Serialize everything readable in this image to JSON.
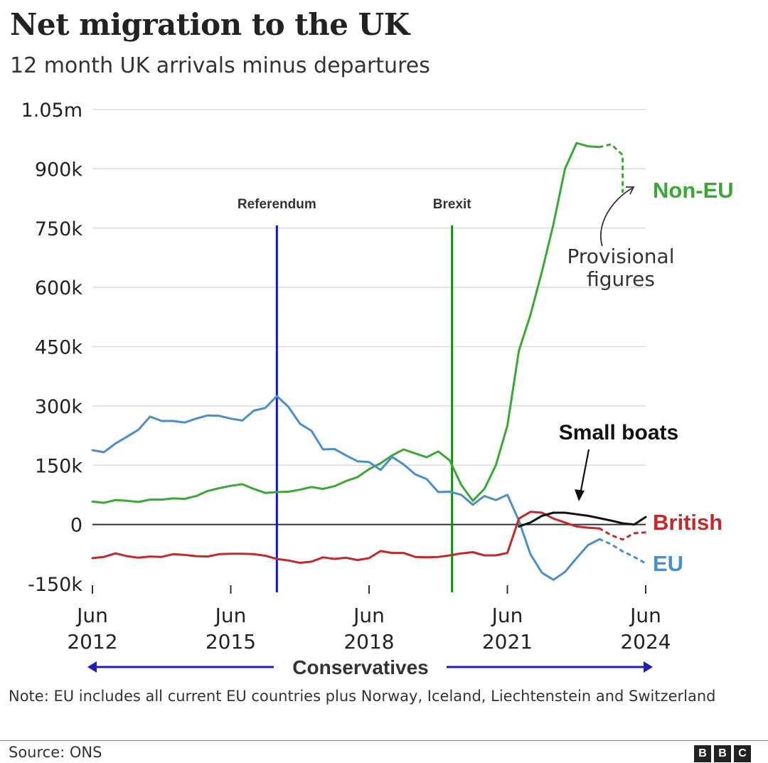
{
  "header": {
    "title": "Net migration to the UK",
    "subtitle": "12 month UK arrivals minus departures"
  },
  "chart_data": {
    "type": "line",
    "ylim": [
      -150000,
      1050000
    ],
    "y_ticks": [
      {
        "value": 1050000,
        "label": "1.05m"
      },
      {
        "value": 900000,
        "label": "900k"
      },
      {
        "value": 750000,
        "label": "750k"
      },
      {
        "value": 600000,
        "label": "600k"
      },
      {
        "value": 450000,
        "label": "450k"
      },
      {
        "value": 300000,
        "label": "300k"
      },
      {
        "value": 150000,
        "label": "150k"
      },
      {
        "value": 0,
        "label": "0"
      },
      {
        "value": -150000,
        "label": "-150k"
      }
    ],
    "x_ticks": [
      {
        "value": 2012.5,
        "line1": "Jun",
        "line2": "2012"
      },
      {
        "value": 2015.5,
        "line1": "Jun",
        "line2": "2015"
      },
      {
        "value": 2018.5,
        "line1": "Jun",
        "line2": "2018"
      },
      {
        "value": 2021.5,
        "line1": "Jun",
        "line2": "2021"
      },
      {
        "value": 2024.5,
        "line1": "Jun",
        "line2": "2024"
      }
    ],
    "xlim": [
      2012.5,
      2024.5
    ],
    "events": [
      {
        "label": "Referendum",
        "x": 2016.5,
        "color": "#1515c8"
      },
      {
        "label": "Brexit",
        "x": 2020.3,
        "color": "#138a13"
      }
    ],
    "series": [
      {
        "name": "Non-EU",
        "color": "#3aa835",
        "x": [
          2012.5,
          2012.75,
          2013,
          2013.25,
          2013.5,
          2013.75,
          2014,
          2014.25,
          2014.5,
          2014.75,
          2015,
          2015.25,
          2015.5,
          2015.75,
          2016,
          2016.25,
          2016.5,
          2016.75,
          2017,
          2017.25,
          2017.5,
          2017.75,
          2018,
          2018.25,
          2018.5,
          2018.75,
          2019,
          2019.25,
          2019.5,
          2019.75,
          2020,
          2020.25,
          2020.5,
          2020.75,
          2021,
          2021.25,
          2021.5,
          2021.75,
          2022,
          2022.25,
          2022.5,
          2022.75,
          2023,
          2023.25,
          2023.5
        ],
        "values": [
          58000,
          55000,
          62000,
          60000,
          57000,
          63000,
          63000,
          66000,
          65000,
          72000,
          85000,
          92000,
          98000,
          102000,
          90000,
          80000,
          82000,
          83000,
          88000,
          95000,
          90000,
          97000,
          110000,
          120000,
          140000,
          155000,
          175000,
          190000,
          180000,
          170000,
          185000,
          162000,
          100000,
          60000,
          90000,
          150000,
          250000,
          440000,
          530000,
          640000,
          760000,
          900000,
          965000,
          957000,
          955000
        ],
        "provisional_x": [
          2023.5,
          2023.75,
          2024,
          2024
        ],
        "provisional_values": [
          955000,
          962000,
          935000,
          842000
        ]
      },
      {
        "name": "EU",
        "color": "#4b8ec8",
        "x": [
          2012.5,
          2012.75,
          2013,
          2013.25,
          2013.5,
          2013.75,
          2014,
          2014.25,
          2014.5,
          2014.75,
          2015,
          2015.25,
          2015.5,
          2015.75,
          2016,
          2016.25,
          2016.5,
          2016.75,
          2017,
          2017.25,
          2017.5,
          2017.75,
          2018,
          2018.25,
          2018.5,
          2018.75,
          2019,
          2019.25,
          2019.5,
          2019.75,
          2020,
          2020.25,
          2020.5,
          2020.75,
          2021,
          2021.25,
          2021.5,
          2021.75,
          2022,
          2022.25,
          2022.5,
          2022.75,
          2023,
          2023.25,
          2023.5
        ],
        "values": [
          188000,
          183000,
          205000,
          222000,
          240000,
          273000,
          262000,
          262000,
          258000,
          268000,
          276000,
          275000,
          268000,
          263000,
          288000,
          295000,
          325000,
          298000,
          255000,
          237000,
          190000,
          191000,
          175000,
          160000,
          158000,
          138000,
          171000,
          152000,
          127000,
          115000,
          82000,
          83000,
          75000,
          50000,
          72000,
          62000,
          75000,
          10000,
          -75000,
          -122000,
          -140000,
          -120000,
          -85000,
          -52000,
          -37000
        ],
        "provisional_x": [
          2023.5,
          2023.75,
          2024,
          2024.25,
          2024.5
        ],
        "provisional_values": [
          -37000,
          -50000,
          -68000,
          -82000,
          -98000
        ]
      },
      {
        "name": "British",
        "color": "#c22a2a",
        "x": [
          2012.5,
          2012.75,
          2013,
          2013.25,
          2013.5,
          2013.75,
          2014,
          2014.25,
          2014.5,
          2014.75,
          2015,
          2015.25,
          2015.5,
          2015.75,
          2016,
          2016.25,
          2016.5,
          2016.75,
          2017,
          2017.25,
          2017.5,
          2017.75,
          2018,
          2018.25,
          2018.5,
          2018.75,
          2019,
          2019.25,
          2019.5,
          2019.75,
          2020,
          2020.25,
          2020.5,
          2020.75,
          2021,
          2021.25,
          2021.5,
          2021.75,
          2022,
          2022.25,
          2022.5,
          2022.75,
          2023,
          2023.25,
          2023.5
        ],
        "values": [
          -85000,
          -82000,
          -73000,
          -80000,
          -84000,
          -81000,
          -82000,
          -75000,
          -77000,
          -80000,
          -81000,
          -75000,
          -74000,
          -74000,
          -75000,
          -79000,
          -87000,
          -91000,
          -97000,
          -94000,
          -83000,
          -87000,
          -84000,
          -90000,
          -85000,
          -67000,
          -72000,
          -72000,
          -82000,
          -83000,
          -82000,
          -78000,
          -73000,
          -70000,
          -78000,
          -78000,
          -72000,
          15000,
          32000,
          30000,
          15000,
          5000,
          -5000,
          -8000,
          -10000
        ],
        "provisional_x": [
          2023.5,
          2023.75,
          2024,
          2024.25,
          2024.5
        ],
        "provisional_values": [
          -10000,
          -27000,
          -38000,
          -22000,
          -20000
        ]
      },
      {
        "name": "Small boats",
        "color": "#111111",
        "x": [
          2021.75,
          2022,
          2022.25,
          2022.5,
          2022.75,
          2023,
          2023.25,
          2023.5,
          2023.75,
          2024,
          2024.25,
          2024.5
        ],
        "values": [
          -5000,
          5000,
          22000,
          30000,
          30000,
          26000,
          22000,
          16000,
          10000,
          3000,
          0,
          19000
        ]
      }
    ],
    "labels": {
      "non_eu": "Non-EU",
      "eu": "EU",
      "british": "British",
      "small_boats": "Small boats",
      "provisional": [
        "Provisional",
        "figures"
      ],
      "era": "Conservatives"
    }
  },
  "footer": {
    "note": "Note: EU includes all current EU countries plus Norway, Iceland, Liechtenstein and Switzerland",
    "source": "Source: ONS",
    "logo_letters": [
      "B",
      "B",
      "C"
    ]
  }
}
